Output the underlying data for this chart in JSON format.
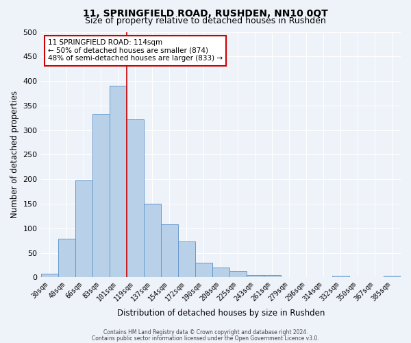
{
  "title": "11, SPRINGFIELD ROAD, RUSHDEN, NN10 0QT",
  "subtitle": "Size of property relative to detached houses in Rushden",
  "xlabel": "Distribution of detached houses by size in Rushden",
  "ylabel": "Number of detached properties",
  "bar_labels": [
    "30sqm",
    "48sqm",
    "66sqm",
    "83sqm",
    "101sqm",
    "119sqm",
    "137sqm",
    "154sqm",
    "172sqm",
    "190sqm",
    "208sqm",
    "225sqm",
    "243sqm",
    "261sqm",
    "279sqm",
    "296sqm",
    "314sqm",
    "332sqm",
    "350sqm",
    "367sqm",
    "385sqm"
  ],
  "bar_heights": [
    8,
    78,
    197,
    333,
    390,
    322,
    150,
    108,
    73,
    30,
    20,
    13,
    5,
    4,
    1,
    0,
    0,
    3,
    0,
    0,
    3
  ],
  "bar_color": "#b8d0e8",
  "bar_edge_color": "#6699cc",
  "vline_color": "#cc0000",
  "ylim": [
    0,
    500
  ],
  "yticks": [
    0,
    50,
    100,
    150,
    200,
    250,
    300,
    350,
    400,
    450,
    500
  ],
  "annotation_title": "11 SPRINGFIELD ROAD: 114sqm",
  "annotation_line1": "← 50% of detached houses are smaller (874)",
  "annotation_line2": "48% of semi-detached houses are larger (833) →",
  "annotation_box_color": "#ffffff",
  "annotation_box_edge": "#cc0000",
  "footer_line1": "Contains HM Land Registry data © Crown copyright and database right 2024.",
  "footer_line2": "Contains public sector information licensed under the Open Government Licence v3.0.",
  "bg_color": "#eef2f9",
  "grid_color": "#ffffff",
  "title_fontsize": 10,
  "subtitle_fontsize": 9
}
